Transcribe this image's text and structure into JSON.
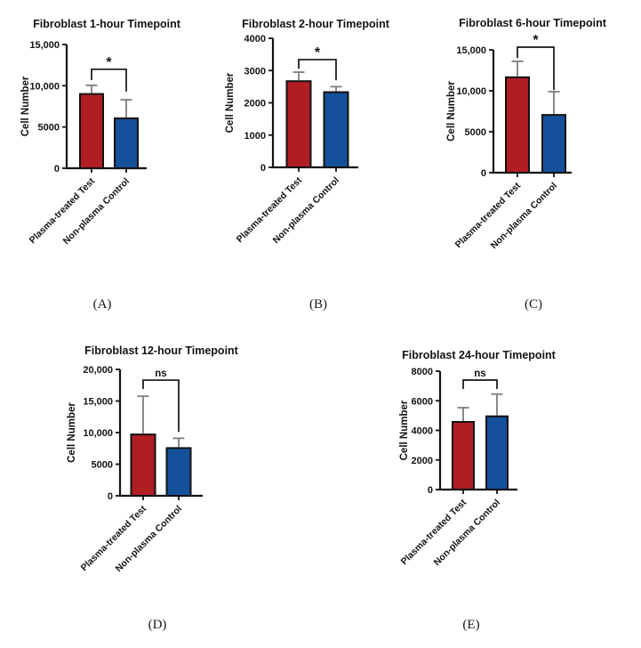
{
  "page": {
    "background": "#ffffff"
  },
  "colors": {
    "test_bar": "#B01E24",
    "control_bar": "#15519A",
    "bar_outline": "#111111",
    "error_bar": "#7d7d7d",
    "axis": "#131313",
    "significance": "#131313"
  },
  "chart_data": [
    {
      "id": "1h",
      "type": "bar",
      "title": "Fibroblast 1-hour Timepoint",
      "ylabel": "Cell Number",
      "xlabel": "",
      "categories": [
        "Plasma-treated Test",
        "Non-plasma Control"
      ],
      "values": [
        9000,
        6050
      ],
      "errors_upper": [
        1050,
        2250
      ],
      "ylim": [
        0,
        15000
      ],
      "yticks": [
        0,
        5000,
        10000,
        15000
      ],
      "ytick_labels": [
        "0",
        "5000",
        "10,000",
        "15,000"
      ],
      "significance": "*",
      "sig_bracket": {
        "top": 12000,
        "left_bottom": 10700,
        "right_bottom": 9300
      },
      "panel_letter": "(A)"
    },
    {
      "id": "2h",
      "type": "bar",
      "title": "Fibroblast 2-hour Timepoint",
      "ylabel": "Cell Number",
      "xlabel": "",
      "categories": [
        "Plasma-treated Test",
        "Non-plasma Control"
      ],
      "values": [
        2670,
        2330
      ],
      "errors_upper": [
        280,
        170
      ],
      "ylim": [
        0,
        4000
      ],
      "yticks": [
        0,
        1000,
        2000,
        3000,
        4000
      ],
      "ytick_labels": [
        "0",
        "1000",
        "2000",
        "3000",
        "4000"
      ],
      "significance": "*",
      "sig_bracket": {
        "top": 3340,
        "left_bottom": 3060,
        "right_bottom": 2700
      },
      "panel_letter": "(B)"
    },
    {
      "id": "6h",
      "type": "bar",
      "title": "Fibroblast 6-hour Timepoint",
      "ylabel": "Cell Number",
      "xlabel": "",
      "categories": [
        "Plasma-treated Test",
        "Non-plasma Control"
      ],
      "values": [
        11650,
        7050
      ],
      "errors_upper": [
        1950,
        2850
      ],
      "ylim": [
        0,
        15000
      ],
      "yticks": [
        0,
        5000,
        10000,
        15000
      ],
      "ytick_labels": [
        "0",
        "5000",
        "10,000",
        "15,000"
      ],
      "significance": "*",
      "sig_bracket": {
        "top": 15330,
        "left_bottom": 14000,
        "right_bottom": 10100
      },
      "panel_letter": "(C)"
    },
    {
      "id": "12h",
      "type": "bar",
      "title": "Fibroblast 12-hour Timepoint",
      "ylabel": "Cell Number",
      "xlabel": "",
      "categories": [
        "Plasma-treated Test",
        "Non-plasma Control"
      ],
      "values": [
        9700,
        7550
      ],
      "errors_upper": [
        6050,
        1550
      ],
      "ylim": [
        0,
        20000
      ],
      "yticks": [
        0,
        5000,
        10000,
        15000,
        20000
      ],
      "ytick_labels": [
        "0",
        "5000",
        "10,000",
        "15,000",
        "20,000"
      ],
      "significance": "ns",
      "sig_bracket": {
        "top": 18300,
        "left_bottom": 16900,
        "right_bottom": 10100
      },
      "panel_letter": "(D)"
    },
    {
      "id": "24h",
      "type": "bar",
      "title": "Fibroblast 24-hour Timepoint",
      "ylabel": "Cell Number",
      "xlabel": "",
      "categories": [
        "Plasma-treated Test",
        "Non-plasma Control"
      ],
      "values": [
        4570,
        4950
      ],
      "errors_upper": [
        960,
        1500
      ],
      "ylim": [
        0,
        8000
      ],
      "yticks": [
        0,
        2000,
        4000,
        6000,
        8000
      ],
      "ytick_labels": [
        "0",
        "2000",
        "4000",
        "6000",
        "8000"
      ],
      "significance": "ns",
      "sig_bracket": {
        "top": 7400,
        "left_bottom": 6800,
        "right_bottom": 6800
      },
      "panel_letter": "(E)"
    }
  ]
}
